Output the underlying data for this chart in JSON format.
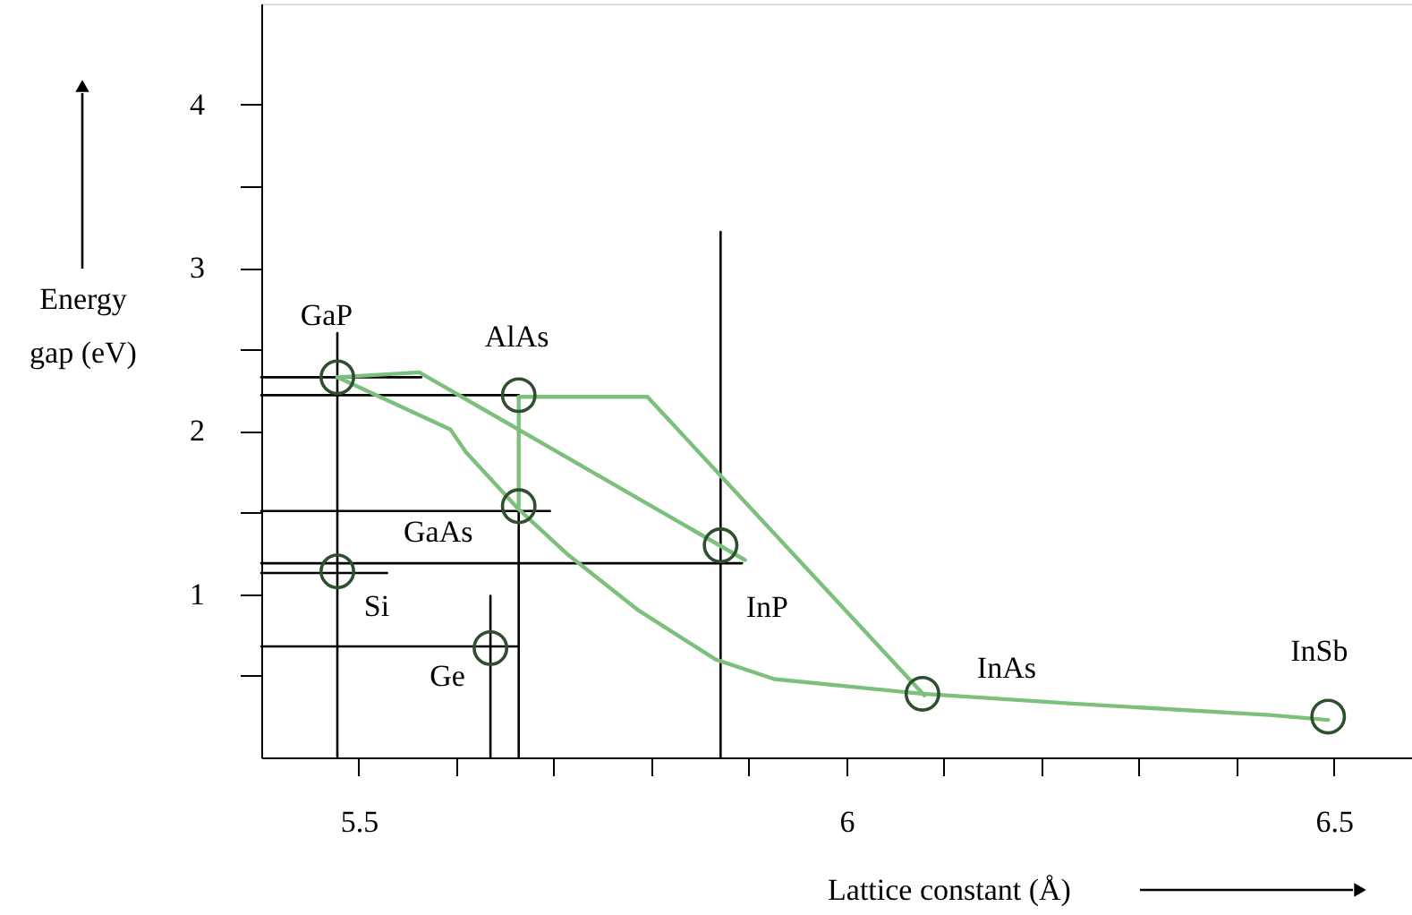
{
  "chart_data": {
    "type": "scatter",
    "xlabel": "Lattice constant (Å)",
    "ylabel": "Energy gap (eV)",
    "xlim": [
      5.4,
      6.58
    ],
    "ylim": [
      0,
      4.62
    ],
    "xticks": [
      5.5,
      {
        "value": 5.6,
        "label": null
      },
      {
        "value": 5.7,
        "label": null
      },
      {
        "value": 5.8,
        "label": null
      },
      {
        "value": 5.9,
        "label": null
      },
      6,
      {
        "value": 6.1,
        "label": null
      },
      {
        "value": 6.2,
        "label": null
      },
      {
        "value": 6.3,
        "label": null
      },
      {
        "value": 6.4,
        "label": null
      },
      6.5
    ],
    "yticks": [
      {
        "value": 0.5,
        "label": null
      },
      1,
      {
        "value": 1.5,
        "label": null
      },
      2,
      {
        "value": 2.5,
        "label": null
      },
      3,
      {
        "value": 3.5,
        "label": null
      },
      4
    ],
    "grid": false,
    "series": [
      {
        "type": "line",
        "color": "#000000",
        "x": [
          5.4,
          5.564
        ],
        "values": [
          2.33,
          2.33
        ]
      },
      {
        "type": "line",
        "color": "#000000",
        "x": [
          5.4,
          5.664
        ],
        "values": [
          2.22,
          2.22
        ]
      },
      {
        "type": "line",
        "color": "#000000",
        "x": [
          5.4,
          5.696
        ],
        "values": [
          1.51,
          1.51
        ]
      },
      {
        "type": "line",
        "color": "#000000",
        "x": [
          5.4,
          5.893
        ],
        "values": [
          1.19,
          1.19
        ]
      },
      {
        "type": "line",
        "color": "#000000",
        "x": [
          5.4,
          5.529
        ],
        "values": [
          1.13,
          1.13
        ]
      },
      {
        "type": "line",
        "color": "#000000",
        "x": [
          5.4,
          5.664
        ],
        "values": [
          0.68,
          0.68
        ]
      },
      {
        "type": "line",
        "color": "#000000",
        "x": [
          5.478,
          5.478
        ],
        "values": [
          0,
          2.6
        ]
      },
      {
        "type": "line",
        "color": "#000000",
        "x": [
          5.635,
          5.635
        ],
        "values": [
          0,
          0.99
        ]
      },
      {
        "type": "line",
        "color": "#000000",
        "x": [
          5.664,
          5.664
        ],
        "values": [
          0,
          2.22
        ]
      },
      {
        "type": "line",
        "color": "#000000",
        "x": [
          5.871,
          5.871
        ],
        "values": [
          0,
          3.22
        ]
      },
      {
        "type": "line",
        "color": "#7cc07c",
        "x": [
          5.478,
          5.562,
          5.896
        ],
        "values": [
          2.33,
          2.36,
          1.21
        ]
      },
      {
        "type": "line",
        "color": "#7cc07c",
        "x": [
          5.664,
          5.664,
          5.796,
          6.08
        ],
        "values": [
          1.54,
          2.21,
          2.21,
          0.38
        ]
      },
      {
        "type": "line",
        "color": "#7cc07c",
        "x": [
          5.478,
          5.594,
          5.61,
          5.664,
          5.713,
          5.787,
          5.866,
          5.926,
          6.078,
          6.232,
          6.434,
          6.494
        ],
        "values": [
          2.33,
          2.01,
          1.87,
          1.52,
          1.25,
          0.9,
          0.6,
          0.48,
          0.39,
          0.33,
          0.26,
          0.23
        ]
      },
      {
        "color": "#2f4f2f",
        "marker": "circle",
        "x": [
          5.478,
          5.664,
          5.664,
          5.478,
          5.635,
          5.871,
          6.078,
          6.494
        ],
        "values": [
          2.33,
          2.22,
          1.54,
          1.14,
          0.67,
          1.3,
          0.39,
          0.25
        ]
      }
    ],
    "annotations": [
      {
        "text": "GaP",
        "x": 5.478,
        "y": 2.33
      },
      {
        "text": "AlAs",
        "x": 5.664,
        "y": 2.22
      },
      {
        "text": "GaAs",
        "x": 5.664,
        "y": 1.54
      },
      {
        "text": "Si",
        "x": 5.478,
        "y": 1.14
      },
      {
        "text": "Ge",
        "x": 5.635,
        "y": 0.67
      },
      {
        "text": "InP",
        "x": 5.871,
        "y": 1.3
      },
      {
        "text": "InAs",
        "x": 6.078,
        "y": 0.39
      },
      {
        "text": "InSb",
        "x": 6.494,
        "y": 0.25
      }
    ]
  }
}
